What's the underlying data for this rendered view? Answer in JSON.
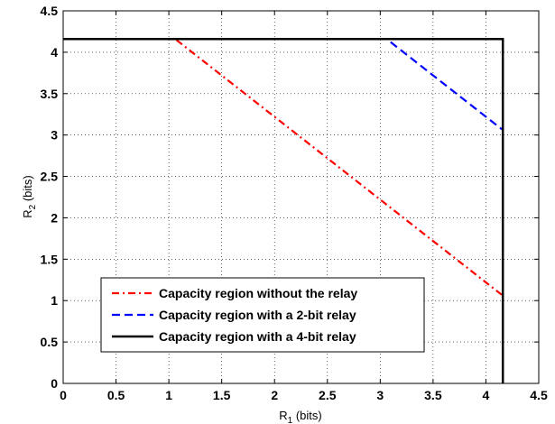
{
  "chart_data": {
    "type": "line",
    "xlabel": {
      "base": "R",
      "sub": "1",
      "rest": " (bits)"
    },
    "ylabel": {
      "base": "R",
      "sub": "2",
      "rest": " (bits)"
    },
    "xlim": [
      0,
      4.5
    ],
    "ylim": [
      0,
      4.5
    ],
    "xticks": [
      "0",
      "0.5",
      "1",
      "1.5",
      "2",
      "2.5",
      "3",
      "3.5",
      "4",
      "4.5"
    ],
    "yticks": [
      "0",
      "0.5",
      "1",
      "1.5",
      "2",
      "2.5",
      "3",
      "3.5",
      "4",
      "4.5"
    ],
    "grid": true,
    "legend_position": "bottom-left",
    "series": [
      {
        "name": "Capacity region without the relay",
        "color": "#ff0000",
        "style": "dash-dot",
        "x": [
          0,
          1.06,
          4.15
        ],
        "y": [
          4.16,
          4.16,
          1.07
        ]
      },
      {
        "name": "Capacity region with a 2-bit relay",
        "color": "#0000ff",
        "style": "dashed",
        "x": [
          0,
          3.06,
          4.15
        ],
        "y": [
          4.16,
          4.16,
          3.07
        ]
      },
      {
        "name": "Capacity region with a 4-bit relay",
        "color": "#000000",
        "style": "solid",
        "x": [
          0,
          4.16,
          4.16
        ],
        "y": [
          4.16,
          4.16,
          0
        ]
      }
    ]
  }
}
